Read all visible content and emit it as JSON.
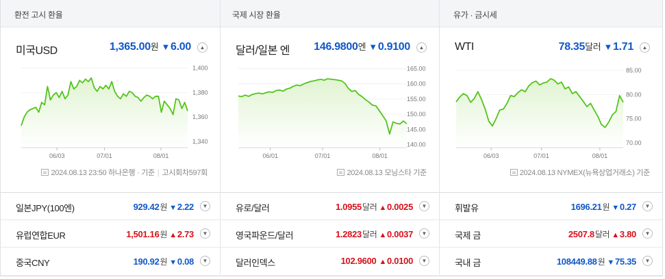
{
  "colors": {
    "down": "#1158c7",
    "up": "#d6111b",
    "chart_line": "#52c41a",
    "chart_fill": "#dff3cf"
  },
  "panels": [
    {
      "header": "환전 고시 환율",
      "name": "미국USD",
      "value": "1,365.00",
      "unit": "원",
      "direction": "down",
      "arrow": "▼",
      "change": "6.00",
      "toggle_icon": "chevron-up-icon",
      "source_date": "2024.08.13 23:50",
      "source_name": "하나은행 · 기준",
      "source_extra": "고시회차597회",
      "chart_data": {
        "type": "area",
        "x_ticks": [
          "06/03",
          "07/01",
          "08/01"
        ],
        "y_ticks": [
          "1,400",
          "1,380",
          "1,360",
          "1,340"
        ],
        "ylim": [
          1335,
          1402
        ],
        "values": [
          1353,
          1360,
          1364,
          1366,
          1367,
          1368,
          1364,
          1372,
          1370,
          1385,
          1374,
          1378,
          1380,
          1376,
          1381,
          1375,
          1378,
          1389,
          1383,
          1385,
          1390,
          1388,
          1391,
          1389,
          1392,
          1384,
          1381,
          1385,
          1383,
          1386,
          1383,
          1389,
          1381,
          1377,
          1375,
          1379,
          1377,
          1381,
          1380,
          1377,
          1376,
          1373,
          1376,
          1378,
          1377,
          1375,
          1377,
          1377,
          1364,
          1373,
          1370,
          1367,
          1362,
          1375,
          1374,
          1367,
          1372,
          1365
        ]
      }
    },
    {
      "header": "국제 시장 환율",
      "name": "달러/일본 엔",
      "value": "146.9800",
      "unit": "엔",
      "direction": "down",
      "arrow": "▼",
      "change": "0.9100",
      "toggle_icon": "chevron-up-icon",
      "source_date": "2024.08.13",
      "source_name": "모닝스타 기준",
      "chart_data": {
        "type": "area",
        "x_ticks": [
          "06/01",
          "07/01",
          "08/01"
        ],
        "y_ticks": [
          "165.00",
          "160.00",
          "155.00",
          "150.00",
          "145.00",
          "140.00"
        ],
        "ylim": [
          139,
          166
        ],
        "values": [
          156.0,
          155.8,
          156.3,
          155.9,
          156.5,
          156.8,
          157.0,
          156.7,
          157.1,
          157.4,
          157.2,
          157.8,
          158.0,
          157.6,
          158.3,
          158.6,
          159.2,
          159.6,
          159.4,
          160.0,
          160.4,
          160.8,
          161.0,
          161.3,
          161.5,
          161.2,
          161.7,
          161.5,
          161.4,
          161.2,
          161.0,
          160.2,
          158.5,
          157.5,
          157.8,
          156.5,
          155.8,
          154.8,
          154.0,
          153.0,
          152.8,
          151.2,
          149.5,
          147.8,
          143.5,
          147.5,
          147.0,
          146.8,
          147.8,
          146.9
        ]
      }
    },
    {
      "header": "유가 · 금시세",
      "name": "WTI",
      "value": "78.35",
      "unit": "달러",
      "direction": "down",
      "arrow": "▼",
      "change": "1.71",
      "toggle_icon": "chevron-up-icon",
      "source_date": "2024.08.13",
      "source_name": "NYMEX(뉴욕상업거래소) 기준",
      "chart_data": {
        "type": "area",
        "x_ticks": [
          "06/03",
          "07/01",
          "08/01"
        ],
        "y_ticks": [
          "85.00",
          "80.00",
          "75.00",
          "70.00"
        ],
        "ylim": [
          69,
          86
        ],
        "values": [
          78.5,
          79.5,
          80.2,
          79.8,
          78.4,
          79.2,
          80.6,
          79.0,
          77.0,
          74.5,
          73.5,
          75.0,
          76.8,
          77.0,
          78.2,
          79.8,
          79.6,
          80.4,
          81.0,
          80.6,
          81.8,
          82.5,
          82.8,
          82.0,
          82.4,
          82.6,
          83.3,
          83.0,
          82.2,
          82.6,
          81.2,
          81.6,
          80.2,
          80.6,
          79.6,
          78.6,
          77.5,
          78.2,
          76.8,
          75.5,
          73.8,
          73.2,
          74.3,
          75.8,
          76.5,
          79.8,
          78.4
        ]
      }
    }
  ],
  "columns": [
    [
      {
        "name": "일본JPY(100엔)",
        "value": "929.42",
        "unit": "원",
        "direction": "down",
        "arrow": "▼",
        "change": "2.22",
        "toggle_icon": "chevron-down-icon"
      },
      {
        "name": "유럽연합EUR",
        "value": "1,501.16",
        "unit": "원",
        "direction": "up",
        "arrow": "▲",
        "change": "2.73",
        "toggle_icon": "chevron-down-icon"
      },
      {
        "name": "중국CNY",
        "value": "190.92",
        "unit": "원",
        "direction": "down",
        "arrow": "▼",
        "change": "0.08",
        "toggle_icon": "chevron-down-icon"
      }
    ],
    [
      {
        "name": "유로/달러",
        "value": "1.0955",
        "unit": "달러",
        "direction": "up",
        "arrow": "▲",
        "change": "0.0025",
        "toggle_icon": "chevron-down-icon"
      },
      {
        "name": "영국파운드/달러",
        "value": "1.2823",
        "unit": "달러",
        "direction": "up",
        "arrow": "▲",
        "change": "0.0037",
        "toggle_icon": "chevron-down-icon"
      },
      {
        "name": "달러인덱스",
        "value": "102.9600",
        "unit": "",
        "direction": "up",
        "arrow": "▲",
        "change": "0.0100",
        "toggle_icon": "chevron-down-icon"
      }
    ],
    [
      {
        "name": "휘발유",
        "value": "1696.21",
        "unit": "원",
        "direction": "down",
        "arrow": "▼",
        "change": "0.27",
        "toggle_icon": "chevron-down-icon"
      },
      {
        "name": "국제 금",
        "value": "2507.8",
        "unit": "달러",
        "direction": "up",
        "arrow": "▲",
        "change": "3.80",
        "toggle_icon": "chevron-down-icon"
      },
      {
        "name": "국내 금",
        "value": "108449.88",
        "unit": "원",
        "direction": "down",
        "arrow": "▼",
        "change": "75.35",
        "toggle_icon": "chevron-down-icon"
      }
    ]
  ]
}
